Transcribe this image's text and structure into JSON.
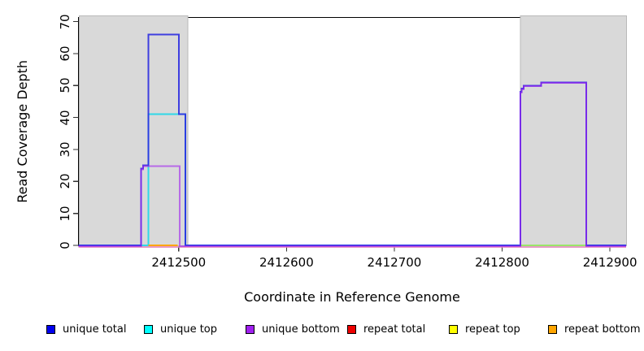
{
  "chart_data": {
    "type": "line",
    "subtype": "step-coverage",
    "title": "",
    "xlabel": "Coordinate in Reference Genome",
    "ylabel": "Read Coverage Depth",
    "xlim": [
      2412407,
      2412915
    ],
    "ylim": [
      0,
      71.3
    ],
    "x_ticks": [
      2412500,
      2412600,
      2412700,
      2412800,
      2412900
    ],
    "y_ticks": [
      0,
      10,
      20,
      30,
      40,
      50,
      60,
      70
    ],
    "grid": false,
    "legend_position": "bottom",
    "shaded_regions": {
      "fill": "#d9d9d9",
      "border": "#b9b9b9",
      "ranges": [
        [
          2412407,
          2412508
        ],
        [
          2412817,
          2412915
        ]
      ]
    },
    "series": [
      {
        "name": "repeat total",
        "legend_color": "#ee0000",
        "plot_color": "#e080b8",
        "opacity": 0.8,
        "width": 1.6,
        "dy": 2,
        "points": [
          [
            2412407,
            0
          ],
          [
            2412915,
            0
          ]
        ]
      },
      {
        "name": "unique top",
        "legend_color": "#00ffff",
        "plot_color": "#30d8e8",
        "opacity": 1,
        "width": 2,
        "dy": 0,
        "points": [
          [
            2412407,
            0
          ],
          [
            2412472,
            0
          ],
          [
            2412472,
            41
          ],
          [
            2412506,
            41
          ],
          [
            2412506,
            0
          ],
          [
            2412915,
            0
          ]
        ]
      },
      {
        "name": "repeat top",
        "legend_color": "#ffff00",
        "plot_color": "#f0f000",
        "opacity": 0.55,
        "width": 2,
        "dy": 0,
        "points": [
          [
            2412817,
            0
          ],
          [
            2412878,
            0
          ]
        ]
      },
      {
        "name": "unique total",
        "legend_color": "#0000ee",
        "plot_color": "#2828e0",
        "opacity": 0.88,
        "width": 2,
        "dy": 0,
        "points": [
          [
            2412407,
            0
          ],
          [
            2412465,
            0
          ],
          [
            2412465,
            24
          ],
          [
            2412467,
            24
          ],
          [
            2412467,
            25
          ],
          [
            2412472,
            25
          ],
          [
            2412472,
            66
          ],
          [
            2412500,
            66
          ],
          [
            2412500,
            41
          ],
          [
            2412506,
            41
          ],
          [
            2412506,
            0
          ],
          [
            2412817,
            0
          ],
          [
            2412817,
            48
          ],
          [
            2412818,
            48
          ],
          [
            2412818,
            49
          ],
          [
            2412820,
            49
          ],
          [
            2412820,
            50
          ],
          [
            2412836,
            50
          ],
          [
            2412836,
            51
          ],
          [
            2412878,
            51
          ],
          [
            2412878,
            0
          ],
          [
            2412915,
            0
          ]
        ]
      },
      {
        "name": "unique bottom",
        "legend_color": "#a020f0",
        "plot_color": "#a020f0",
        "opacity": 0.6,
        "width": 2,
        "dy": 0.8,
        "points": [
          [
            2412407,
            0
          ],
          [
            2412465,
            0
          ],
          [
            2412465,
            24
          ],
          [
            2412467,
            24
          ],
          [
            2412467,
            25
          ],
          [
            2412501,
            25
          ],
          [
            2412501,
            0
          ],
          [
            2412817,
            0
          ],
          [
            2412817,
            48
          ],
          [
            2412818,
            48
          ],
          [
            2412818,
            49
          ],
          [
            2412820,
            49
          ],
          [
            2412820,
            50
          ],
          [
            2412836,
            50
          ],
          [
            2412836,
            51
          ],
          [
            2412878,
            51
          ],
          [
            2412878,
            0
          ],
          [
            2412915,
            0
          ]
        ]
      },
      {
        "name": "repeat bottom",
        "legend_color": "#ffa500",
        "plot_color": "#ffa500",
        "opacity": 1,
        "width": 2,
        "dy": 0,
        "points": [
          [
            2412472,
            0
          ],
          [
            2412499,
            0
          ]
        ]
      }
    ],
    "legend": [
      {
        "label": "unique total",
        "color": "#0000ee"
      },
      {
        "label": "unique top",
        "color": "#00ffff"
      },
      {
        "label": "unique bottom",
        "color": "#a020f0"
      },
      {
        "label": "repeat total",
        "color": "#ee0000"
      },
      {
        "label": "repeat top",
        "color": "#ffff00"
      },
      {
        "label": "repeat bottom",
        "color": "#ffa500"
      }
    ]
  }
}
